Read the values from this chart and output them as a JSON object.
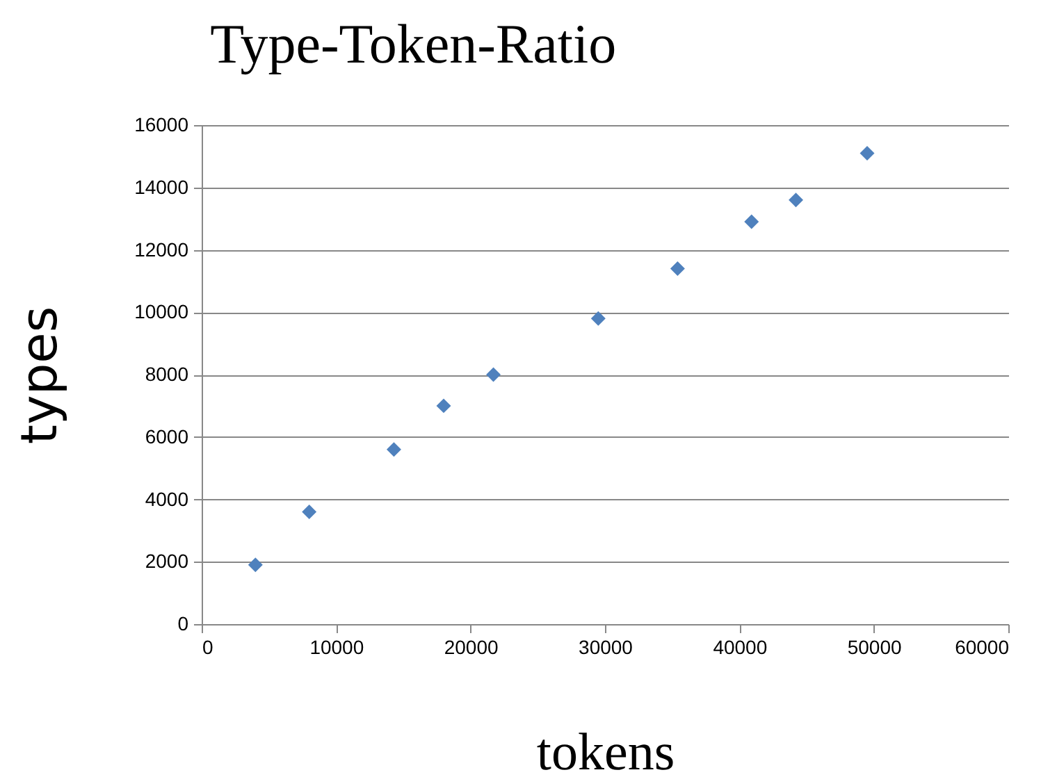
{
  "chart_data": {
    "type": "scatter",
    "title": "Type-Token-Ratio",
    "xlabel": "tokens",
    "ylabel": "types",
    "x": [
      4000,
      8000,
      14300,
      18000,
      21700,
      29500,
      35400,
      40900,
      44200,
      49500
    ],
    "series": [
      {
        "color": "#4f81bd",
        "values": [
          1900,
          3600,
          5600,
          7000,
          8000,
          9800,
          11400,
          12900,
          13600,
          15100
        ]
      }
    ],
    "xlim": [
      0,
      60000
    ],
    "xticks": [
      0,
      10000,
      20000,
      30000,
      40000,
      50000,
      60000
    ],
    "ylim": [
      0,
      16000
    ],
    "yticks": [
      0,
      2000,
      4000,
      6000,
      8000,
      10000,
      12000,
      14000,
      16000
    ],
    "grid": "y",
    "marker": "diamond",
    "legend": false
  }
}
